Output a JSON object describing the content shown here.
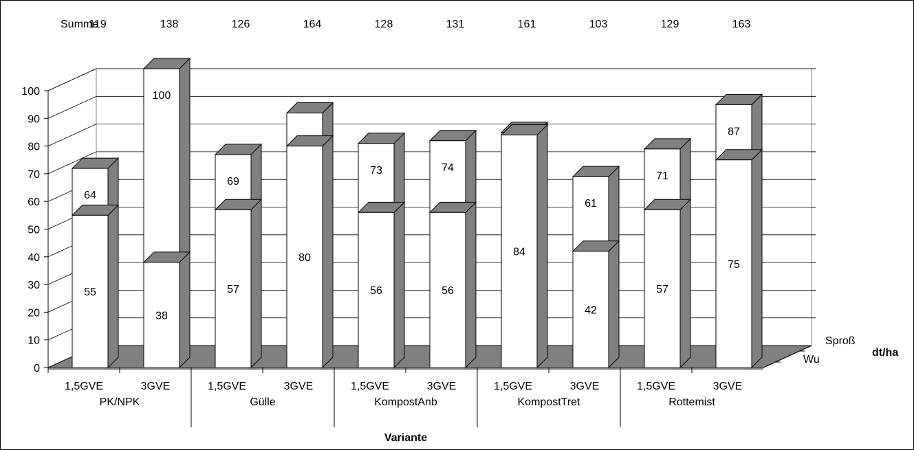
{
  "chart_data": {
    "type": "bar",
    "subtype": "3d-clustered-columns",
    "summe_label": "Summe",
    "summe": [
      119,
      138,
      126,
      164,
      128,
      131,
      161,
      103,
      129,
      163
    ],
    "groups": [
      "PK/NPK",
      "Gülle",
      "KompostAnb",
      "KompostTret",
      "Rottemist"
    ],
    "categories": [
      "1,5GVE",
      "3GVE",
      "1,5GVE",
      "3GVE",
      "1,5GVE",
      "3GVE",
      "1,5GVE",
      "3GVE",
      "1,5GVE",
      "3GVE"
    ],
    "series": [
      {
        "name": "Wu",
        "values": [
          55,
          38,
          57,
          80,
          56,
          56,
          84,
          42,
          57,
          75
        ]
      },
      {
        "name": "Sproß",
        "values": [
          64,
          100,
          69,
          84,
          73,
          74,
          77,
          61,
          71,
          87
        ]
      }
    ],
    "xlabel": "Variante",
    "zlabel": "dt/ha",
    "ylim": [
      0,
      100
    ],
    "yticks": [
      0,
      10,
      20,
      30,
      40,
      50,
      60,
      70,
      80,
      90,
      100
    ],
    "grid": true,
    "colors": {
      "face": "#ffffff",
      "side": "#808080",
      "floor": "#808080",
      "edge": "#000000"
    }
  }
}
